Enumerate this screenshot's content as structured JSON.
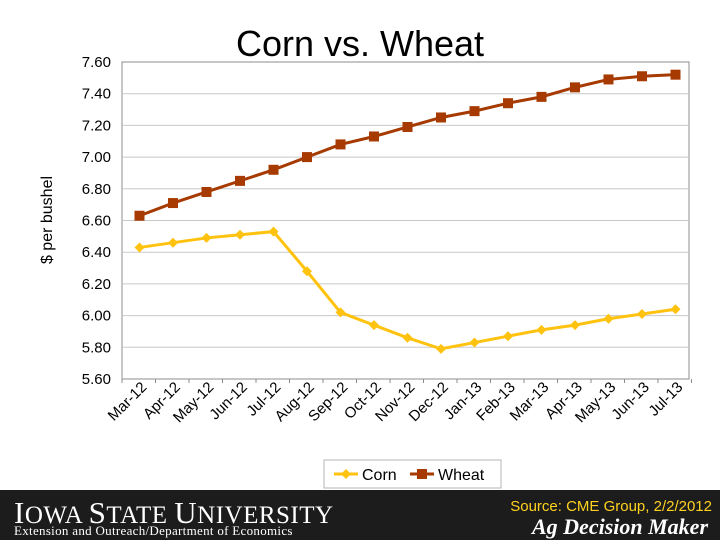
{
  "chart_data": {
    "type": "line",
    "title": "Corn vs. Wheat",
    "ylabel": "$ per bushel",
    "xlabel": "",
    "ylim": [
      5.6,
      7.6
    ],
    "yticks": [
      "5.60",
      "5.80",
      "6.00",
      "6.20",
      "6.40",
      "6.60",
      "6.80",
      "7.00",
      "7.20",
      "7.40",
      "7.60"
    ],
    "categories": [
      "Mar-12",
      "Apr-12",
      "May-12",
      "Jun-12",
      "Jul-12",
      "Aug-12",
      "Sep-12",
      "Oct-12",
      "Nov-12",
      "Dec-12",
      "Jan-13",
      "Feb-13",
      "Mar-13",
      "Apr-13",
      "May-13",
      "Jun-13",
      "Jul-13"
    ],
    "grid": true,
    "legend": "bottom",
    "series": [
      {
        "name": "Corn",
        "color": "#ffc20e",
        "marker": "diamond",
        "values": [
          6.43,
          6.46,
          6.49,
          6.51,
          6.53,
          6.28,
          6.02,
          5.94,
          5.86,
          5.79,
          5.83,
          5.87,
          5.91,
          5.94,
          5.98,
          6.01,
          6.04
        ]
      },
      {
        "name": "Wheat",
        "color": "#a63a00",
        "marker": "square",
        "values": [
          6.63,
          6.71,
          6.78,
          6.85,
          6.92,
          7.0,
          7.08,
          7.13,
          7.19,
          7.25,
          7.29,
          7.34,
          7.38,
          7.44,
          7.49,
          7.51,
          7.52
        ]
      }
    ]
  },
  "footer": {
    "university_first": "I",
    "university_rest1": "OWA ",
    "university_s": "S",
    "university_rest2": "TATE ",
    "university_u": "U",
    "university_rest3": "NIVERSITY",
    "department": "Extension and Outreach/Department of Economics",
    "source": "Source: CME Group, 2/2/2012",
    "brand": "Ag Decision Maker"
  }
}
